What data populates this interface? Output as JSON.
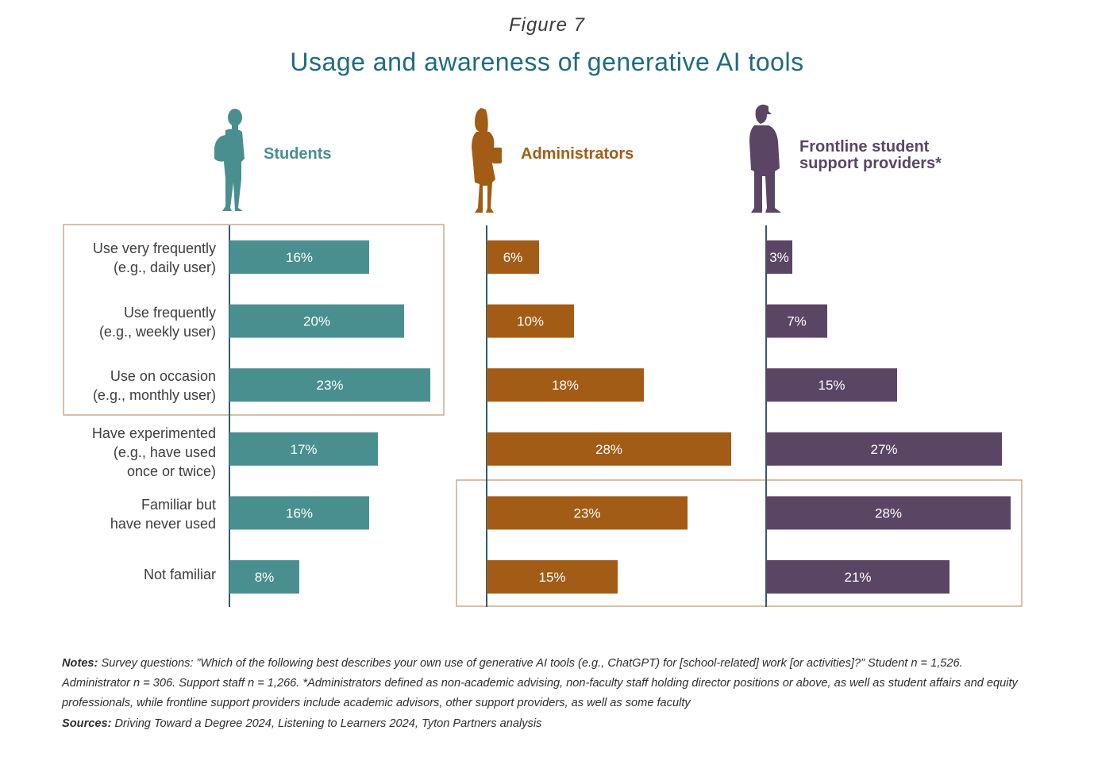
{
  "figure_label": "Figure 7",
  "title": "Usage and awareness of generative AI tools",
  "groups": [
    {
      "key": "students",
      "title_line1": "Students",
      "title_line2": "",
      "color": "#4a8f8f",
      "icon": "student-with-backpack-silhouette-icon"
    },
    {
      "key": "administrators",
      "title_line1": "Administrators",
      "title_line2": "",
      "color": "#a35c16",
      "icon": "woman-with-handbag-silhouette-icon"
    },
    {
      "key": "frontline",
      "title_line1": "Frontline student",
      "title_line2": "support providers*",
      "color": "#5a4565",
      "icon": "man-with-cap-silhouette-icon"
    }
  ],
  "categories": [
    {
      "line1": "Use very frequently",
      "line2": "(e.g., daily user)",
      "line3": ""
    },
    {
      "line1": "Use frequently",
      "line2": "(e.g., weekly user)",
      "line3": ""
    },
    {
      "line1": "Use on occasion",
      "line2": "(e.g., monthly user)",
      "line3": ""
    },
    {
      "line1": "Have experimented",
      "line2": "(e.g., have used",
      "line3": "once or twice)"
    },
    {
      "line1": "Familiar but",
      "line2": "have never used",
      "line3": ""
    },
    {
      "line1": "Not familiar",
      "line2": "",
      "line3": ""
    }
  ],
  "chart_data": {
    "type": "bar",
    "orientation": "horizontal",
    "title": "Usage and awareness of generative AI tools",
    "categories": [
      "Use very frequently (e.g., daily user)",
      "Use frequently (e.g., weekly user)",
      "Use on occasion (e.g., monthly user)",
      "Have experimented (e.g., have used once or twice)",
      "Familiar but have never used",
      "Not familiar"
    ],
    "series": [
      {
        "name": "Students",
        "values": [
          16,
          20,
          23,
          17,
          16,
          8
        ],
        "labels": [
          "16%",
          "20%",
          "23%",
          "17%",
          "16%",
          "8%"
        ],
        "color": "#4a8f8f"
      },
      {
        "name": "Administrators",
        "values": [
          6,
          10,
          18,
          28,
          23,
          15
        ],
        "labels": [
          "6%",
          "10%",
          "18%",
          "28%",
          "23%",
          "15%"
        ],
        "color": "#a35c16"
      },
      {
        "name": "Frontline student support providers*",
        "values": [
          3,
          7,
          15,
          27,
          28,
          21
        ],
        "labels": [
          "3%",
          "7%",
          "15%",
          "27%",
          "28%",
          "21%"
        ],
        "color": "#5a4565"
      }
    ],
    "unit": "%",
    "highlight_boxes": [
      {
        "series": [
          "Students"
        ],
        "categories": [
          0,
          1,
          2
        ]
      },
      {
        "series": [
          "Administrators",
          "Frontline student support providers*"
        ],
        "categories": [
          4,
          5
        ]
      }
    ]
  },
  "notes": {
    "label": "Notes:",
    "text": "Survey questions: ”Which of the following best describes your own use of generative AI tools (e.g., ChatGPT) for [school-related] work [or activities]?” Student n = 1,526. Administrator n = 306. Support staff n = 1,266. *Administrators defined as non-academic advising, non-faculty staff holding director positions or above, as well as student affairs and equity professionals, while frontline support providers include academic advisors, other support providers, as well as some faculty"
  },
  "sources": {
    "label": "Sources:",
    "text": "Driving Toward a Degree 2024, Listening to Learners 2024, Tyton Partners analysis"
  }
}
